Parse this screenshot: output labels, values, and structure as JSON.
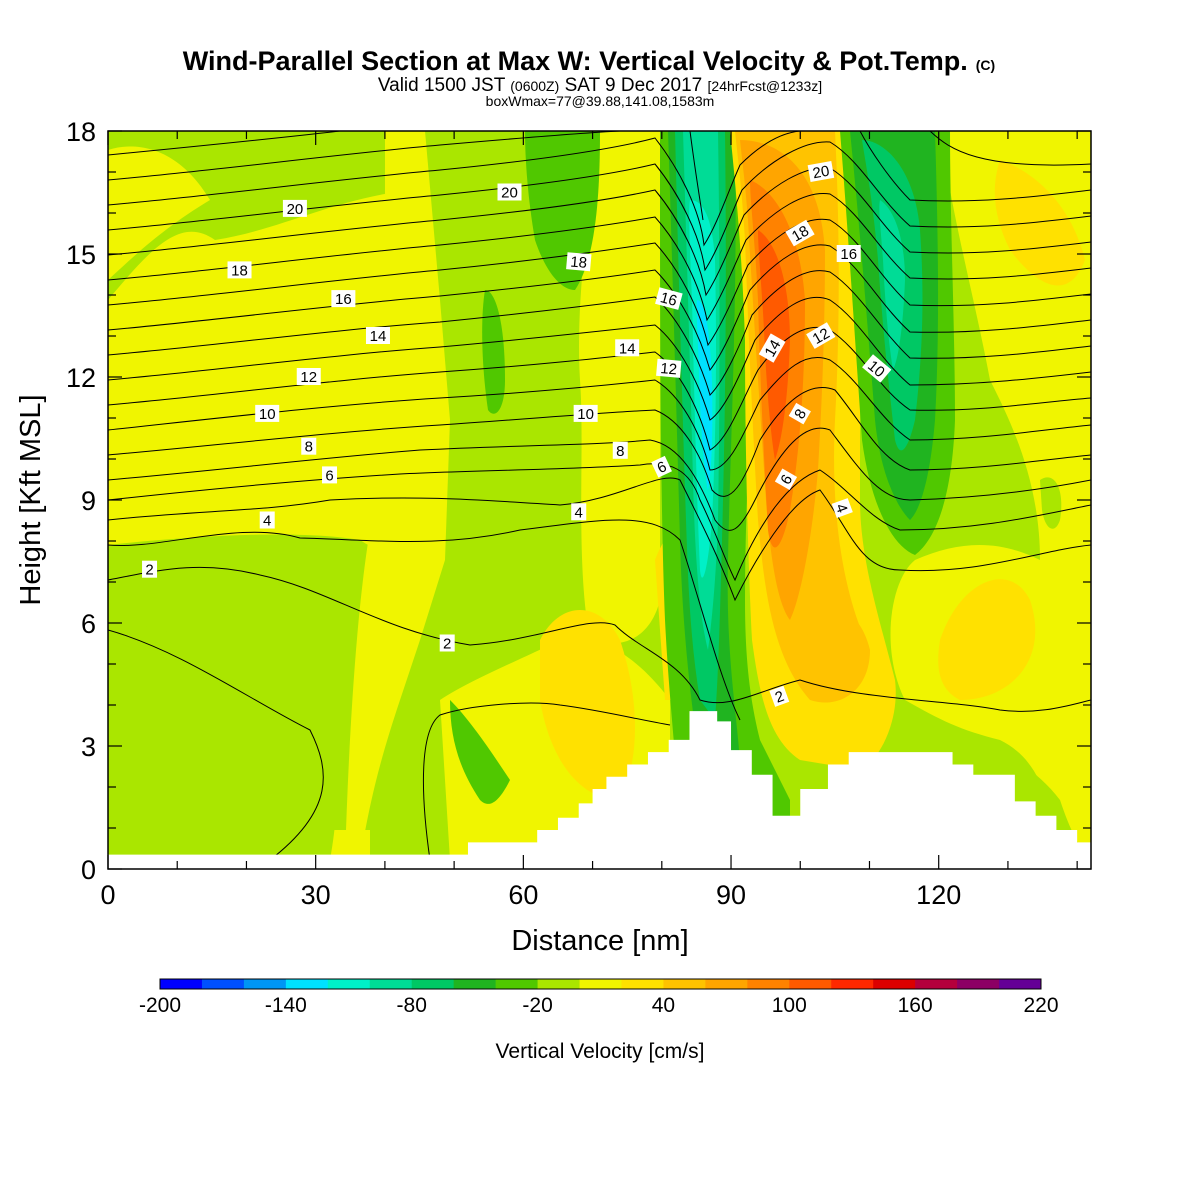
{
  "header": {
    "title_main": "Wind-Parallel Section at Max W: Vertical Velocity & Pot.Temp.",
    "title_mark": "(C)",
    "valid_a": "Valid 1500 JST",
    "valid_zulu": "(0600Z)",
    "valid_b": "SAT 9 Dec 2017",
    "valid_fcst": "[24hrFcst@1233z]",
    "box_line": "boxWmax=77@39.88,141.08,1583m"
  },
  "chart_data": {
    "type": "heatmap",
    "xlabel": "Distance [nm]",
    "ylabel": "Height [Kft MSL]",
    "xlim": [
      0,
      142
    ],
    "ylim": [
      0,
      18
    ],
    "x_ticks": [
      0,
      30,
      60,
      90,
      120
    ],
    "y_ticks": [
      0,
      3,
      6,
      9,
      12,
      15,
      18
    ],
    "grid": false,
    "colorbar": {
      "label": "Vertical Velocity [cm/s]",
      "placement": "bottom",
      "bounds": [
        -200,
        220
      ],
      "labels": [
        -200,
        -140,
        -80,
        -20,
        40,
        100,
        160,
        220
      ],
      "colors": [
        "#0000ff",
        "#0050ff",
        "#0096f5",
        "#00e1ff",
        "#00f0c8",
        "#00dc96",
        "#00c864",
        "#20b420",
        "#50c800",
        "#aae600",
        "#f0f500",
        "#ffe100",
        "#ffc300",
        "#ffa500",
        "#ff8200",
        "#ff5a00",
        "#ff2800",
        "#dc0000",
        "#b4003c",
        "#8c0064",
        "#640096"
      ]
    },
    "vertical_velocity_features": [
      {
        "kind": "downdraft",
        "center_x_nm": 87,
        "z_range_kft": [
          1.5,
          18
        ],
        "peak_cm_s": -150
      },
      {
        "kind": "updraft",
        "center_x_nm": 96,
        "z_range_kft": [
          1.5,
          18
        ],
        "peak_cm_s": 110
      },
      {
        "kind": "downdraft",
        "center_x_nm": 113,
        "z_range_kft": [
          7.5,
          18
        ],
        "peak_cm_s": -85
      },
      {
        "kind": "weak downdraft",
        "center_x_nm": 65,
        "z_range_kft": [
          10,
          18
        ],
        "peak_cm_s": -40
      },
      {
        "kind": "weak updraft",
        "center_x_nm": 24,
        "z_range_kft": [
          9,
          17
        ],
        "peak_cm_s": 20
      }
    ],
    "terrain_kft": {
      "x": [
        0,
        50,
        52,
        58,
        62,
        65,
        68,
        70,
        72,
        75,
        78,
        81,
        84,
        87,
        88,
        89,
        90,
        91,
        93,
        96,
        98,
        100,
        104,
        107,
        112,
        118,
        122,
        125,
        128,
        131,
        134,
        137,
        140,
        142
      ],
      "z": [
        0.35,
        0.35,
        0.65,
        0.65,
        0.95,
        1.25,
        1.6,
        1.95,
        2.25,
        2.55,
        2.85,
        3.15,
        3.85,
        3.85,
        3.6,
        3.6,
        2.9,
        2.9,
        2.3,
        1.3,
        1.3,
        1.95,
        2.55,
        2.85,
        2.85,
        2.85,
        2.55,
        2.3,
        2.3,
        1.65,
        1.3,
        0.95,
        0.65,
        0.65
      ]
    },
    "theta_contours": {
      "labels": [
        "2",
        "4",
        "6",
        "8",
        "10",
        "12",
        "14",
        "16",
        "18",
        "20"
      ],
      "label_positions": [
        {
          "text": "2",
          "x": 6,
          "z": 7.3,
          "angle": 0
        },
        {
          "text": "2",
          "x": 49,
          "z": 5.5,
          "angle": 0
        },
        {
          "text": "2",
          "x": 97,
          "z": 4.2,
          "angle": -20
        },
        {
          "text": "4",
          "x": 23,
          "z": 8.5,
          "angle": 0
        },
        {
          "text": "4",
          "x": 68,
          "z": 8.7,
          "angle": 0
        },
        {
          "text": "4",
          "x": 106,
          "z": 8.8,
          "angle": 70
        },
        {
          "text": "6",
          "x": 32,
          "z": 9.6,
          "angle": 0
        },
        {
          "text": "6",
          "x": 80,
          "z": 9.8,
          "angle": -25
        },
        {
          "text": "6",
          "x": 98,
          "z": 9.5,
          "angle": -60
        },
        {
          "text": "8",
          "x": 29,
          "z": 10.3,
          "angle": 0
        },
        {
          "text": "8",
          "x": 74,
          "z": 10.2,
          "angle": 0
        },
        {
          "text": "8",
          "x": 100,
          "z": 11.1,
          "angle": -60
        },
        {
          "text": "10",
          "x": 23,
          "z": 11.1,
          "angle": 0
        },
        {
          "text": "10",
          "x": 69,
          "z": 11.1,
          "angle": 0
        },
        {
          "text": "10",
          "x": 111,
          "z": 12.2,
          "angle": 40
        },
        {
          "text": "12",
          "x": 29,
          "z": 12.0,
          "angle": 0
        },
        {
          "text": "12",
          "x": 81,
          "z": 12.2,
          "angle": 5
        },
        {
          "text": "12",
          "x": 103,
          "z": 13.0,
          "angle": -30
        },
        {
          "text": "14",
          "x": 39,
          "z": 13.0,
          "angle": 0
        },
        {
          "text": "14",
          "x": 75,
          "z": 12.7,
          "angle": 0
        },
        {
          "text": "14",
          "x": 96,
          "z": 12.7,
          "angle": -60
        },
        {
          "text": "16",
          "x": 34,
          "z": 13.9,
          "angle": 0
        },
        {
          "text": "16",
          "x": 81,
          "z": 13.9,
          "angle": 15
        },
        {
          "text": "16",
          "x": 107,
          "z": 15.0,
          "angle": 0
        },
        {
          "text": "18",
          "x": 19,
          "z": 14.6,
          "angle": 0
        },
        {
          "text": "18",
          "x": 68,
          "z": 14.8,
          "angle": 5
        },
        {
          "text": "18",
          "x": 100,
          "z": 15.5,
          "angle": -30
        },
        {
          "text": "20",
          "x": 27,
          "z": 16.1,
          "angle": 0
        },
        {
          "text": "20",
          "x": 58,
          "z": 16.5,
          "angle": 0
        },
        {
          "text": "20",
          "x": 103,
          "z": 17.0,
          "angle": -10
        }
      ]
    }
  }
}
